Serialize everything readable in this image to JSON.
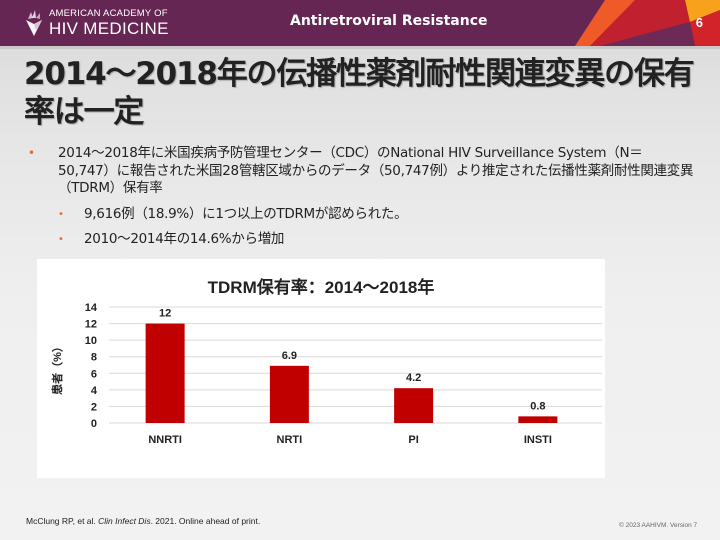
{
  "header": {
    "logo_line1": "AMERICAN ACADEMY OF",
    "logo_line2": "HIV MEDICINE",
    "section_title": "Antiretroviral Resistance",
    "page_number": "6",
    "brand_color": "#662654",
    "accent_colors": [
      "#f05a28",
      "#c1202f",
      "#f8a11c"
    ]
  },
  "title": "2014～2018年の伝播性薬剤耐性関連変異の保有率は一定",
  "bullets": [
    {
      "text": "2014～2018年に米国疾病予防管理センター（CDC）のNational HIV Surveillance System（N＝50,747）に報告された米国28管轄区域からのデータ（50,747例）より推定された伝播性薬剤耐性関連変異（TDRM）保有率",
      "sub": [
        "9,616例（18.9%）に1つ以上のTDRMが認められた。",
        "2010～2014年の14.6%から増加"
      ]
    }
  ],
  "bullet_color": "#e46c2e",
  "chart_data": {
    "type": "bar",
    "title": "TDRM保有率：2014～2018年",
    "categories": [
      "NNRTI",
      "NRTI",
      "PI",
      "INSTI"
    ],
    "values": [
      12,
      6.9,
      4.2,
      0.8
    ],
    "data_labels": [
      "12",
      "6.9",
      "4.2",
      "0.8"
    ],
    "xlabel": "",
    "ylabel": "患者（%）",
    "ylim": [
      0,
      14
    ],
    "yticks": [
      0,
      2,
      4,
      6,
      8,
      10,
      12,
      14
    ],
    "grid": true,
    "legend": "none",
    "bar_color": "#c00000"
  },
  "footer": {
    "reference_authors": "McClung RP, et al.",
    "reference_journal": "Clin Infect Dis",
    "reference_rest": ". 2021. Online ahead of print.",
    "copyright": "© 2023 AAHIVM. Version 7"
  }
}
